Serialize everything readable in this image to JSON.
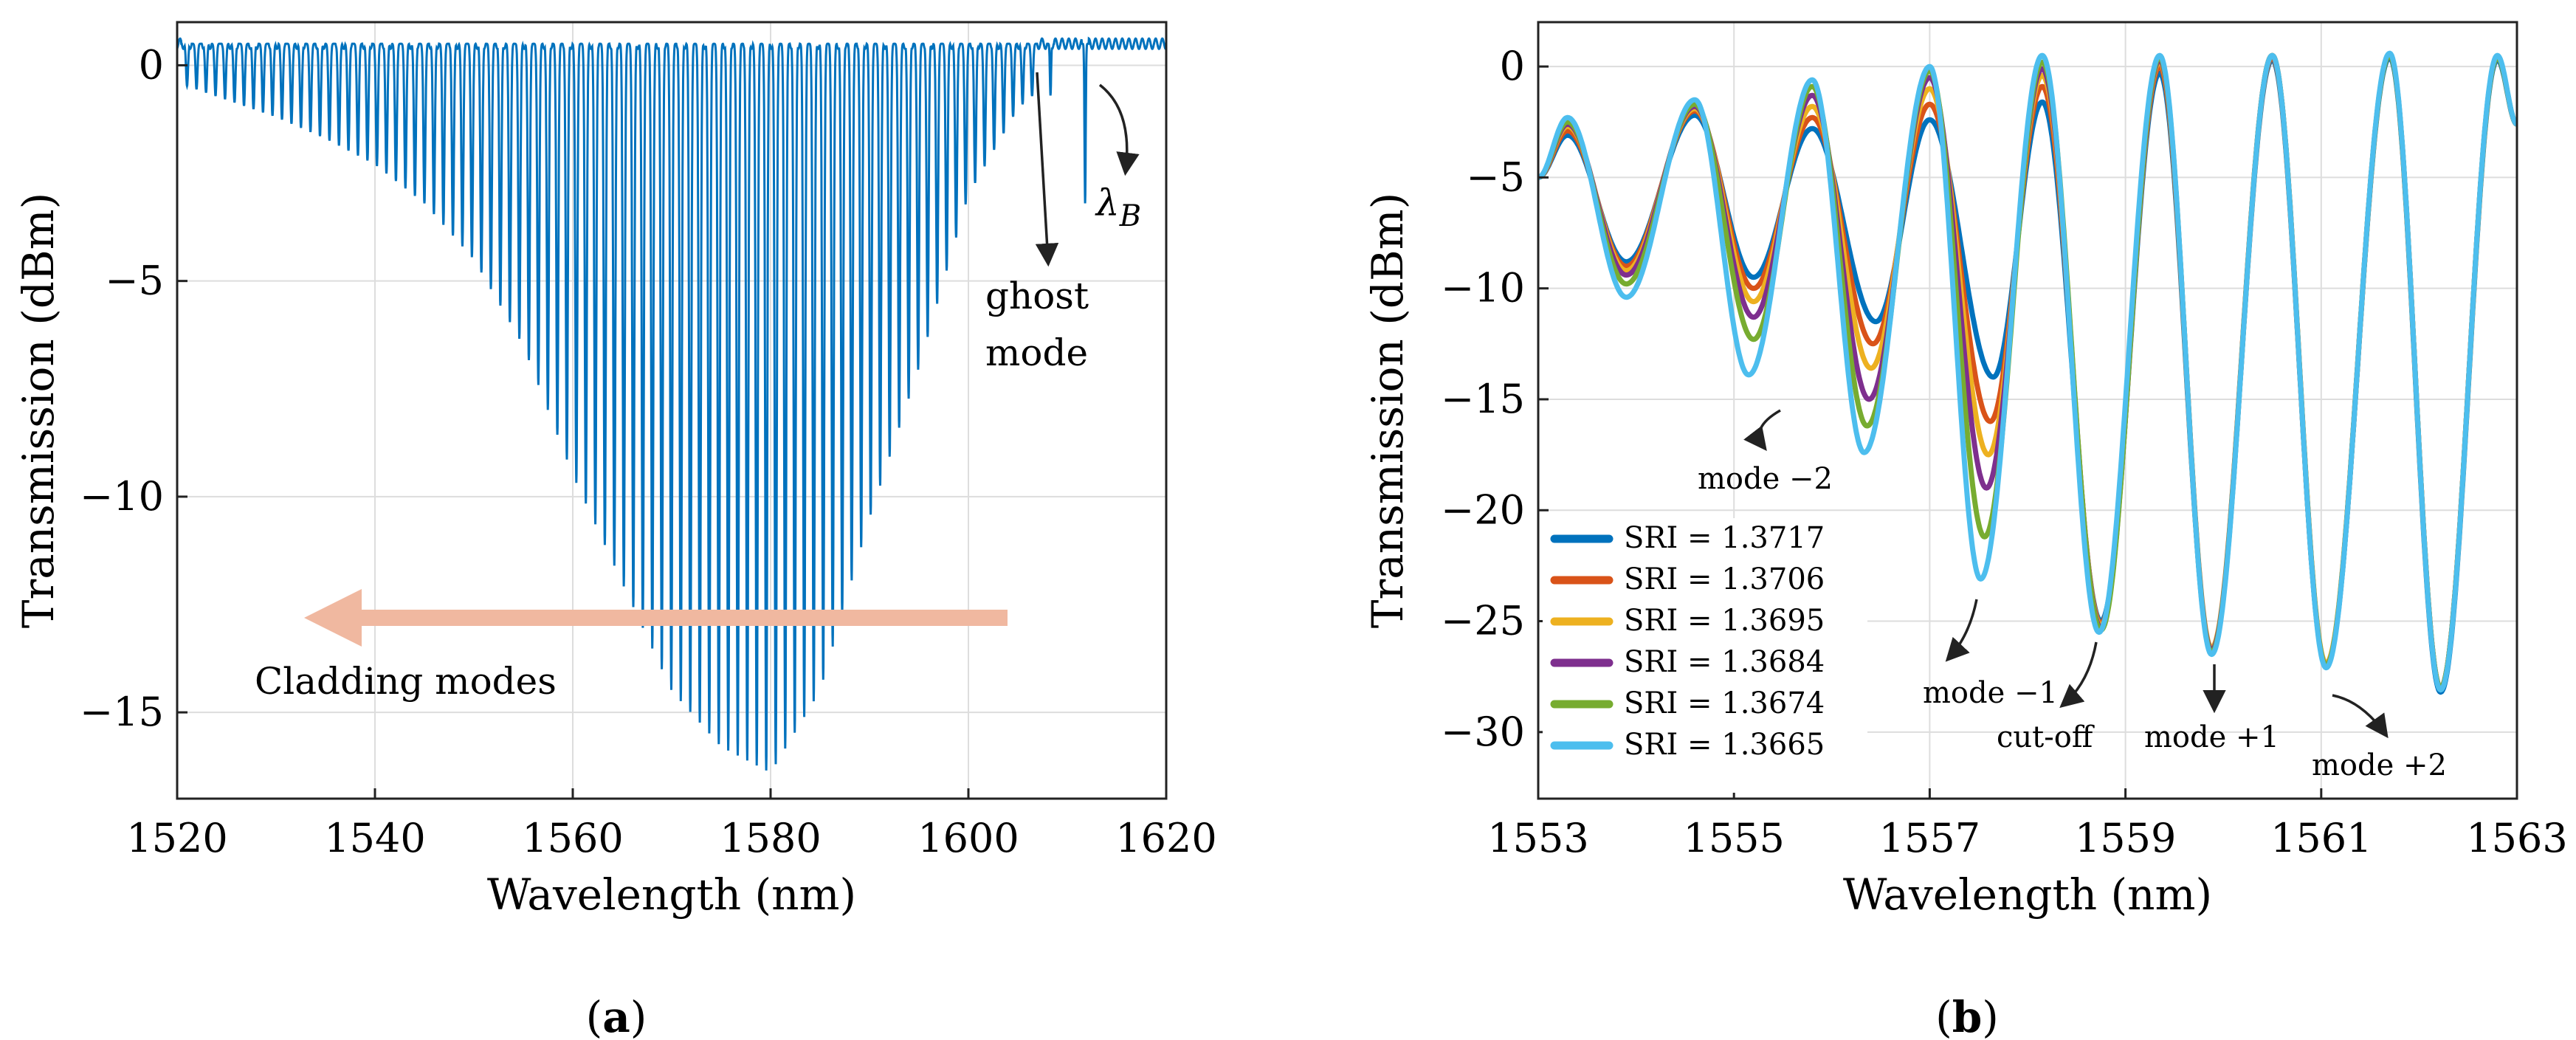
{
  "chart_data": [
    {
      "type": "line",
      "panel_label": "a",
      "xlabel": "Wavelength (nm)",
      "ylabel": "Transmission (dBm)",
      "xlim": [
        1520,
        1620
      ],
      "ylim": [
        -17,
        1
      ],
      "xticks": [
        1520,
        1540,
        1560,
        1580,
        1600,
        1620
      ],
      "xtick_labels": [
        "1520",
        "1540",
        "1560",
        "1580",
        "1600",
        "1620"
      ],
      "yticks": [
        0,
        -5,
        -10,
        -15
      ],
      "ytick_labels": [
        "0",
        "−5",
        "−10",
        "−15"
      ],
      "grid": true,
      "series_color": "#0072BD",
      "baseline_db": 0.5,
      "dips": {
        "first_nm": 1521.0,
        "spacing_nm": 0.96,
        "count": 90,
        "envelope": [
          [
            1520,
            -0.4
          ],
          [
            1525,
            -0.8
          ],
          [
            1530,
            -1.2
          ],
          [
            1535,
            -1.7
          ],
          [
            1540,
            -2.3
          ],
          [
            1545,
            -3.2
          ],
          [
            1550,
            -4.5
          ],
          [
            1555,
            -6.5
          ],
          [
            1560,
            -9.5
          ],
          [
            1565,
            -12.0
          ],
          [
            1570,
            -14.5
          ],
          [
            1575,
            -15.8
          ],
          [
            1580,
            -16.4
          ],
          [
            1585,
            -14.5
          ],
          [
            1590,
            -10.5
          ],
          [
            1595,
            -7.0
          ],
          [
            1600,
            -3.0
          ],
          [
            1605,
            -1.0
          ],
          [
            1608,
            -0.4
          ]
        ]
      },
      "special_dips": [
        {
          "name": "ghost mode",
          "x": 1608.3,
          "y": -0.7
        },
        {
          "name": "Bragg",
          "x": 1611.8,
          "y": -3.2
        }
      ],
      "annotations": {
        "bragg_prefix": "λ",
        "bragg_sub": "B",
        "ghost_line1": "ghost",
        "ghost_line2": "mode",
        "cladding": "Cladding modes"
      },
      "arrow_color": "#F0B8A0"
    },
    {
      "type": "line",
      "panel_label": "b",
      "xlabel": "Wavelength (nm)",
      "ylabel": "Transmission (dBm)",
      "xlim": [
        1553,
        1563
      ],
      "ylim": [
        -33,
        2
      ],
      "xticks": [
        1553,
        1555,
        1557,
        1559,
        1561,
        1563
      ],
      "xtick_labels": [
        "1553",
        "1555",
        "1557",
        "1559",
        "1561",
        "1563"
      ],
      "yticks": [
        0,
        -5,
        -10,
        -15,
        -20,
        -25,
        -30
      ],
      "ytick_labels": [
        "0",
        "−5",
        "−10",
        "−15",
        "−20",
        "−25",
        "−30"
      ],
      "grid": true,
      "legend_position": "bottom-left",
      "series": [
        {
          "name": "SRI = 1.3717",
          "color": "#0072BD",
          "dips": [
            [
              1553.9,
              -8.8
            ],
            [
              1555.2,
              -9.5
            ],
            [
              1556.45,
              -11.5
            ],
            [
              1557.65,
              -14.0
            ],
            [
              1558.75,
              -25.0
            ],
            [
              1559.88,
              -26.3
            ],
            [
              1561.05,
              -27.0
            ],
            [
              1562.22,
              -28.2
            ]
          ],
          "peaks": [
            [
              1553.3,
              -3.1
            ],
            [
              1554.6,
              -2.2
            ],
            [
              1555.8,
              -2.8
            ],
            [
              1557.0,
              -2.4
            ],
            [
              1558.15,
              -1.6
            ],
            [
              1559.35,
              -0.3
            ],
            [
              1560.5,
              0.3
            ],
            [
              1561.7,
              0.4
            ],
            [
              1562.8,
              0.3
            ]
          ]
        },
        {
          "name": "SRI = 1.3706",
          "color": "#D95319",
          "dips": [
            [
              1553.9,
              -9.0
            ],
            [
              1555.2,
              -10.0
            ],
            [
              1556.42,
              -12.5
            ],
            [
              1557.62,
              -16.0
            ],
            [
              1558.75,
              -25.1
            ],
            [
              1559.88,
              -26.3
            ],
            [
              1561.05,
              -27.0
            ],
            [
              1562.22,
              -28.0
            ]
          ],
          "peaks": [
            [
              1553.3,
              -2.9
            ],
            [
              1554.6,
              -2.0
            ],
            [
              1555.8,
              -2.3
            ],
            [
              1557.0,
              -1.7
            ],
            [
              1558.15,
              -0.9
            ],
            [
              1559.35,
              0.0
            ],
            [
              1560.5,
              0.4
            ],
            [
              1561.7,
              0.5
            ],
            [
              1562.8,
              0.4
            ]
          ]
        },
        {
          "name": "SRI = 1.3695",
          "color": "#EDB120",
          "dips": [
            [
              1553.9,
              -9.2
            ],
            [
              1555.2,
              -10.6
            ],
            [
              1556.4,
              -13.6
            ],
            [
              1557.6,
              -17.5
            ],
            [
              1558.75,
              -25.2
            ],
            [
              1559.88,
              -26.2
            ],
            [
              1561.05,
              -26.9
            ],
            [
              1562.22,
              -28.0
            ]
          ],
          "peaks": [
            [
              1553.3,
              -2.7
            ],
            [
              1554.6,
              -1.9
            ],
            [
              1555.8,
              -1.8
            ],
            [
              1557.0,
              -1.0
            ],
            [
              1558.15,
              -0.4
            ],
            [
              1559.35,
              0.2
            ],
            [
              1560.5,
              0.5
            ],
            [
              1561.7,
              0.5
            ],
            [
              1562.8,
              0.4
            ]
          ]
        },
        {
          "name": "SRI = 1.3684",
          "color": "#7E2F8E",
          "dips": [
            [
              1553.9,
              -9.4
            ],
            [
              1555.2,
              -11.3
            ],
            [
              1556.38,
              -15.0
            ],
            [
              1557.58,
              -19.0
            ],
            [
              1558.75,
              -25.3
            ],
            [
              1559.88,
              -26.3
            ],
            [
              1561.05,
              -27.0
            ],
            [
              1562.22,
              -28.0
            ]
          ],
          "peaks": [
            [
              1553.3,
              -2.6
            ],
            [
              1554.6,
              -1.8
            ],
            [
              1555.8,
              -1.3
            ],
            [
              1557.0,
              -0.5
            ],
            [
              1558.15,
              -0.1
            ],
            [
              1559.35,
              0.3
            ],
            [
              1560.5,
              0.5
            ],
            [
              1561.7,
              0.5
            ],
            [
              1562.8,
              0.4
            ]
          ]
        },
        {
          "name": "SRI = 1.3674",
          "color": "#77AC30",
          "dips": [
            [
              1553.9,
              -9.8
            ],
            [
              1555.2,
              -12.3
            ],
            [
              1556.36,
              -16.2
            ],
            [
              1557.56,
              -21.2
            ],
            [
              1558.75,
              -25.4
            ],
            [
              1559.88,
              -26.4
            ],
            [
              1561.05,
              -27.0
            ],
            [
              1562.22,
              -28.0
            ]
          ],
          "peaks": [
            [
              1553.3,
              -2.5
            ],
            [
              1554.6,
              -1.7
            ],
            [
              1555.8,
              -0.9
            ],
            [
              1557.0,
              -0.2
            ],
            [
              1558.15,
              0.2
            ],
            [
              1559.35,
              0.4
            ],
            [
              1560.5,
              0.5
            ],
            [
              1561.7,
              0.5
            ],
            [
              1562.8,
              0.4
            ]
          ]
        },
        {
          "name": "SRI = 1.3665",
          "color": "#4DBEEE",
          "dips": [
            [
              1553.9,
              -10.4
            ],
            [
              1555.15,
              -13.9
            ],
            [
              1556.33,
              -17.4
            ],
            [
              1557.52,
              -23.1
            ],
            [
              1558.73,
              -25.5
            ],
            [
              1559.88,
              -26.5
            ],
            [
              1561.05,
              -27.1
            ],
            [
              1562.22,
              -28.1
            ]
          ],
          "peaks": [
            [
              1553.3,
              -2.3
            ],
            [
              1554.6,
              -1.5
            ],
            [
              1555.8,
              -0.6
            ],
            [
              1557.0,
              0.0
            ],
            [
              1558.15,
              0.5
            ],
            [
              1559.35,
              0.5
            ],
            [
              1560.5,
              0.5
            ],
            [
              1561.7,
              0.6
            ],
            [
              1562.8,
              0.5
            ]
          ]
        }
      ],
      "annotations": [
        {
          "text": "mode −2",
          "points_to": [
            1555.2,
            -16.7
          ]
        },
        {
          "text": "mode −1",
          "points_to": [
            1557.2,
            -27.2
          ]
        },
        {
          "text": "cut-off",
          "points_to": [
            1558.0,
            -29.0
          ]
        },
        {
          "text": "mode +1",
          "points_to": [
            1559.97,
            -28.8
          ]
        },
        {
          "text": "mode +2",
          "points_to": [
            1561.5,
            -29.5
          ]
        }
      ]
    }
  ]
}
